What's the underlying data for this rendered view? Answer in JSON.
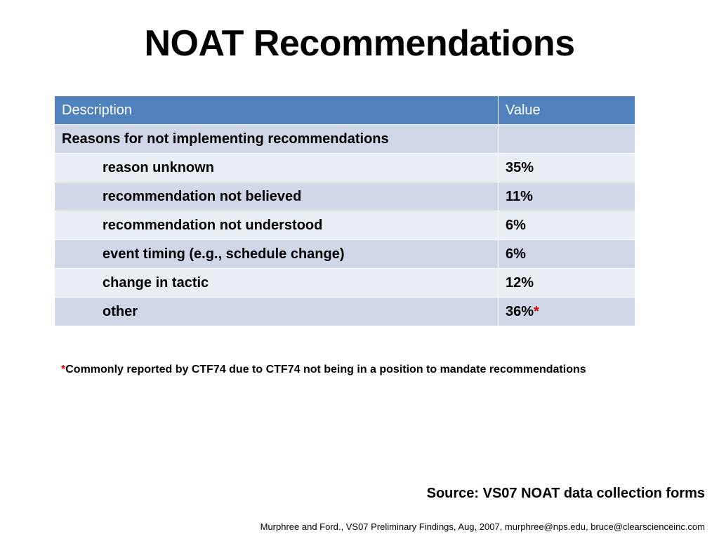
{
  "title": "NOAT Recommendations",
  "table": {
    "headers": {
      "description": "Description",
      "value": "Value"
    },
    "section_label": "Reasons for not implementing recommendations",
    "section_value": "",
    "rows": [
      {
        "description": "reason unknown",
        "value": "35%"
      },
      {
        "description": "recommendation not believed",
        "value": "11%"
      },
      {
        "description": "recommendation not understood",
        "value": "6%"
      },
      {
        "description": "event timing (e.g., schedule change)",
        "value": "6%"
      },
      {
        "description": "change in tactic",
        "value": "12%"
      },
      {
        "description": "other",
        "value": "36%",
        "marker": "*"
      }
    ]
  },
  "footnote": {
    "marker": "*",
    "text": "Commonly reported by CTF74 due to CTF74 not being in a position to mandate recommendations"
  },
  "source": "Source:  VS07 NOAT data collection forms",
  "citation": "Murphree and Ford., VS07 Preliminary Findings, Aug, 2007, murphree@nps.edu, bruce@clearscienceinc.com",
  "colors": {
    "header_bg": "#4f81bd",
    "row_dark": "#d0d8e8",
    "row_light": "#e9edf4",
    "asterisk": "#e00000"
  }
}
